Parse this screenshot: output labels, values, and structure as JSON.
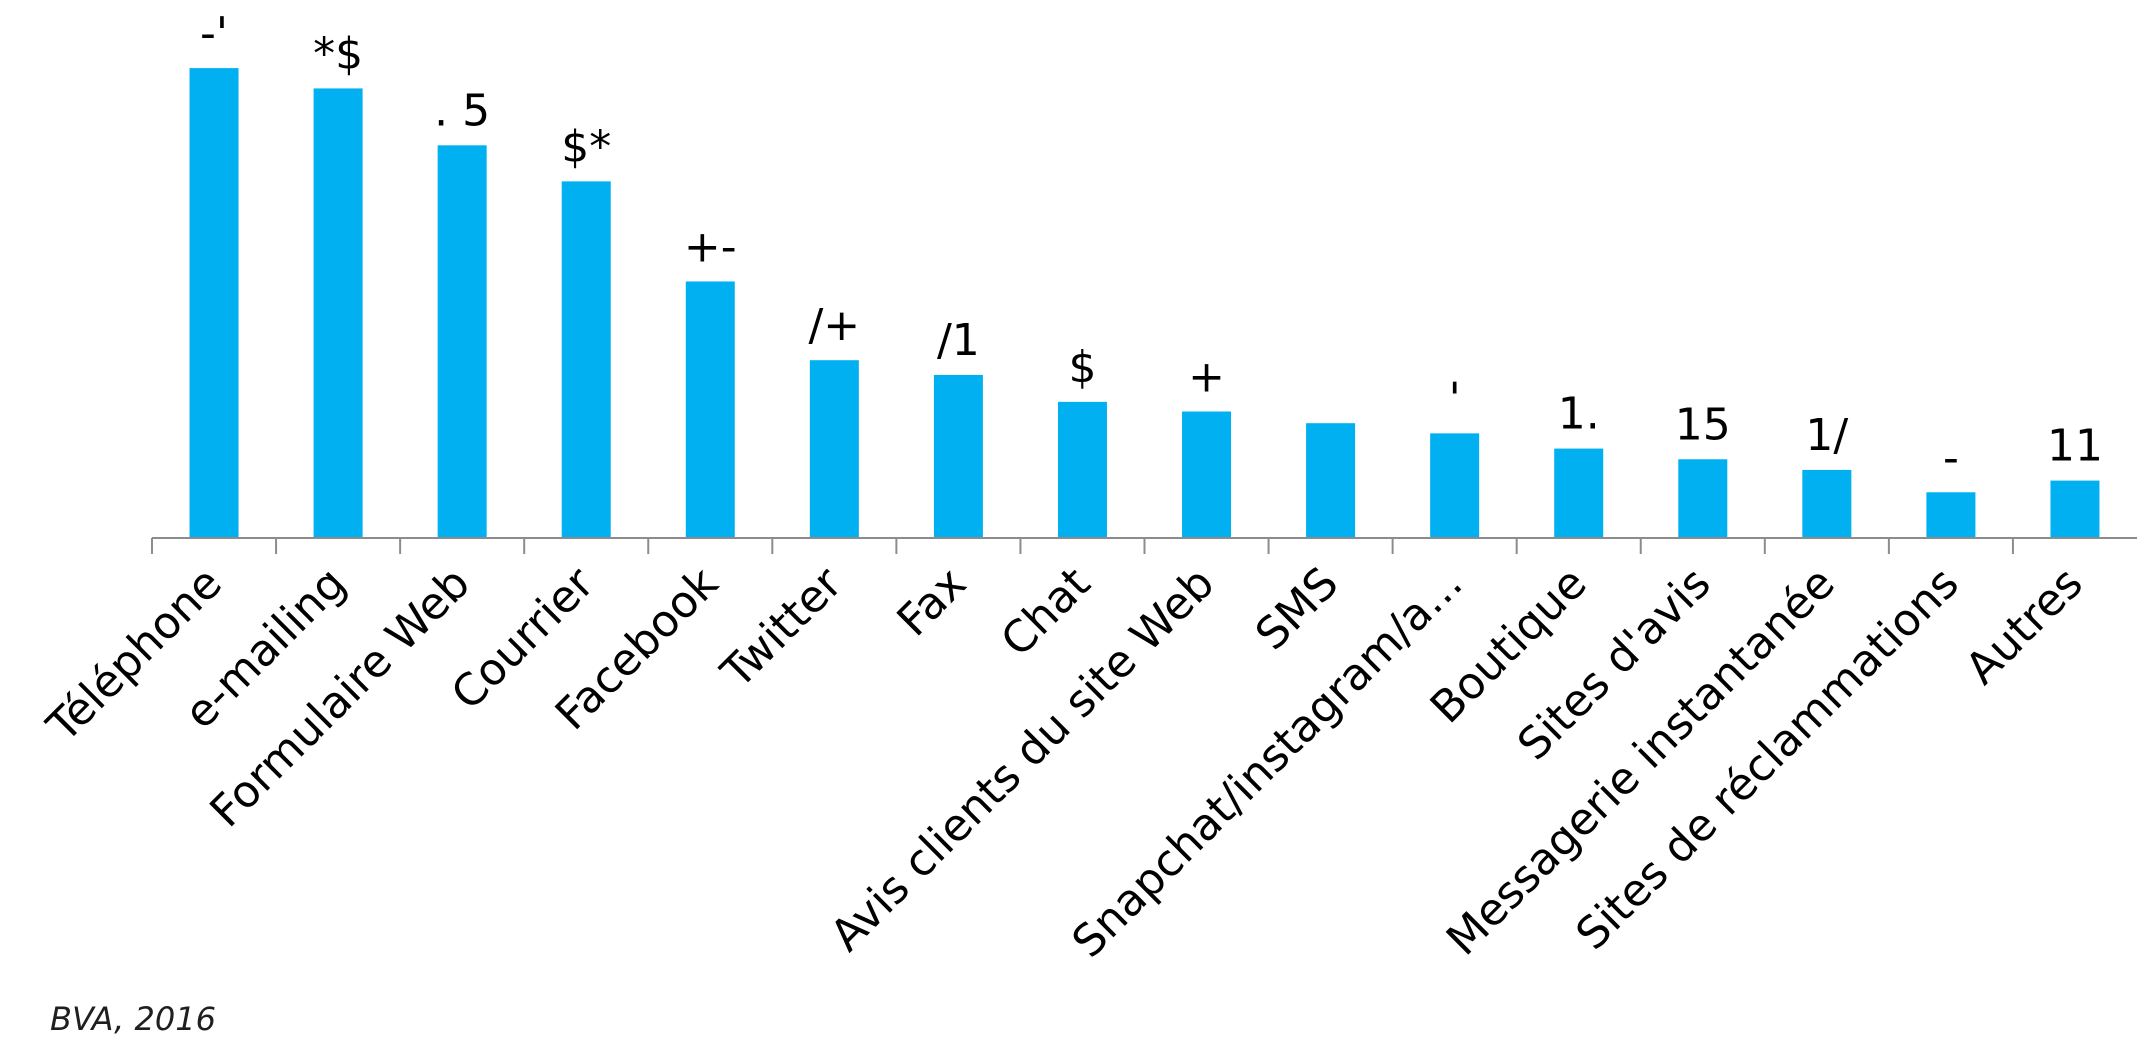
{
  "chart_data": {
    "type": "bar",
    "title": "",
    "xlabel": "",
    "ylabel": "",
    "bar_color": "#00b0f0",
    "categories": [
      "Téléphone",
      "e-mailing",
      "Formulaire Web",
      "Courrier",
      "Facebook",
      "Twitter",
      "Fax",
      "Chat",
      "Avis clients du site Web",
      "SMS",
      "Snapchat/instagram/a...",
      "Boutique",
      "Sites d'avis",
      "Messagerie instantanée",
      "Sites de réclammations",
      "Autres"
    ],
    "values": [
      92.5,
      88.5,
      77.3,
      70.2,
      50.5,
      35.0,
      32.1,
      26.8,
      24.9,
      22.6,
      20.6,
      17.6,
      15.5,
      13.4,
      9.0,
      11.3
    ],
    "data_labels": [
      "-'",
      "*$",
      ". 5",
      "$*",
      "+-",
      "/+",
      "/1",
      "$",
      "+",
      "",
      "'",
      "1.",
      "15",
      "1/",
      "-",
      "11"
    ],
    "ylim": [
      0,
      100
    ]
  },
  "source": "BVA, 2016"
}
